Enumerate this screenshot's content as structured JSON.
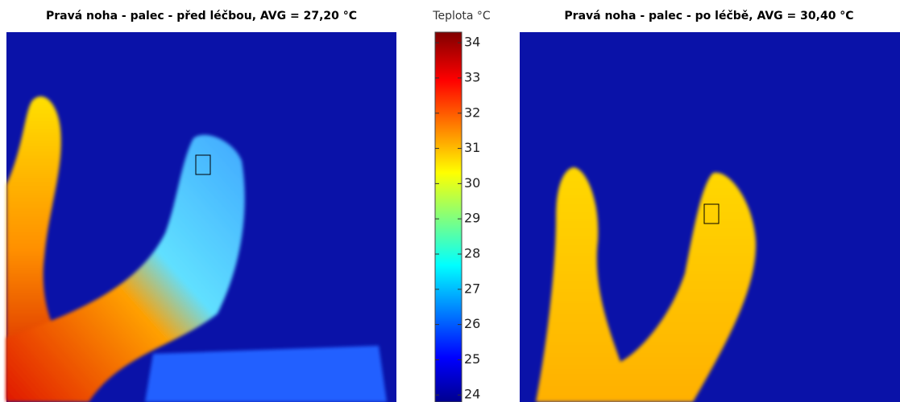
{
  "panels": [
    {
      "title": "Pravá noha - palec - před léčbou, AVG = 27,20 °C"
    },
    {
      "title": "Pravá noha - palec - po léčbě, AVG = 30,40 °C"
    }
  ],
  "colorbar": {
    "label": "Teplota °C",
    "lim": [
      23.8,
      34.3
    ],
    "ticks": [
      24,
      25,
      26,
      27,
      28,
      29,
      30,
      31,
      32,
      33,
      34
    ]
  }
}
